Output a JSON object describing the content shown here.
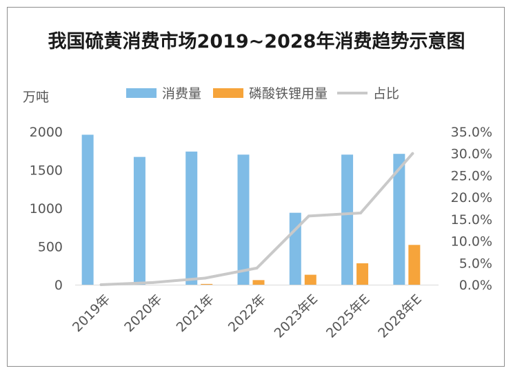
{
  "chart_data": {
    "type": "bar",
    "title": "我国硫黄消费市场2019~2028年消费趋势示意图",
    "y_unit": "万吨",
    "categories": [
      "2019年",
      "2020年",
      "2021年",
      "2022年",
      "2023年E",
      "2025年E",
      "2028年E"
    ],
    "series": [
      {
        "name": "消费量",
        "type": "bar",
        "axis": "left",
        "color": "#7fbce6",
        "values": [
          1960,
          1670,
          1740,
          1700,
          940,
          1700,
          1710
        ]
      },
      {
        "name": "磷酸铁锂用量",
        "type": "bar",
        "axis": "left",
        "color": "#f6a43b",
        "values": [
          0,
          0,
          10,
          60,
          130,
          280,
          520
        ]
      },
      {
        "name": "占比",
        "type": "line",
        "axis": "right",
        "color": "#c9c9c9",
        "values": [
          0.0,
          0.5,
          1.5,
          3.8,
          15.7,
          16.4,
          30.0
        ]
      }
    ],
    "y_left": {
      "min": 0,
      "max": 2000,
      "ticks": [
        0,
        500,
        1000,
        1500,
        2000
      ]
    },
    "y_right": {
      "min": 0,
      "max": 35,
      "ticks": [
        "0.0%",
        "5.0%",
        "10.0%",
        "15.0%",
        "20.0%",
        "25.0%",
        "30.0%",
        "35.0%"
      ]
    },
    "grid": false,
    "legend": "top-center"
  }
}
